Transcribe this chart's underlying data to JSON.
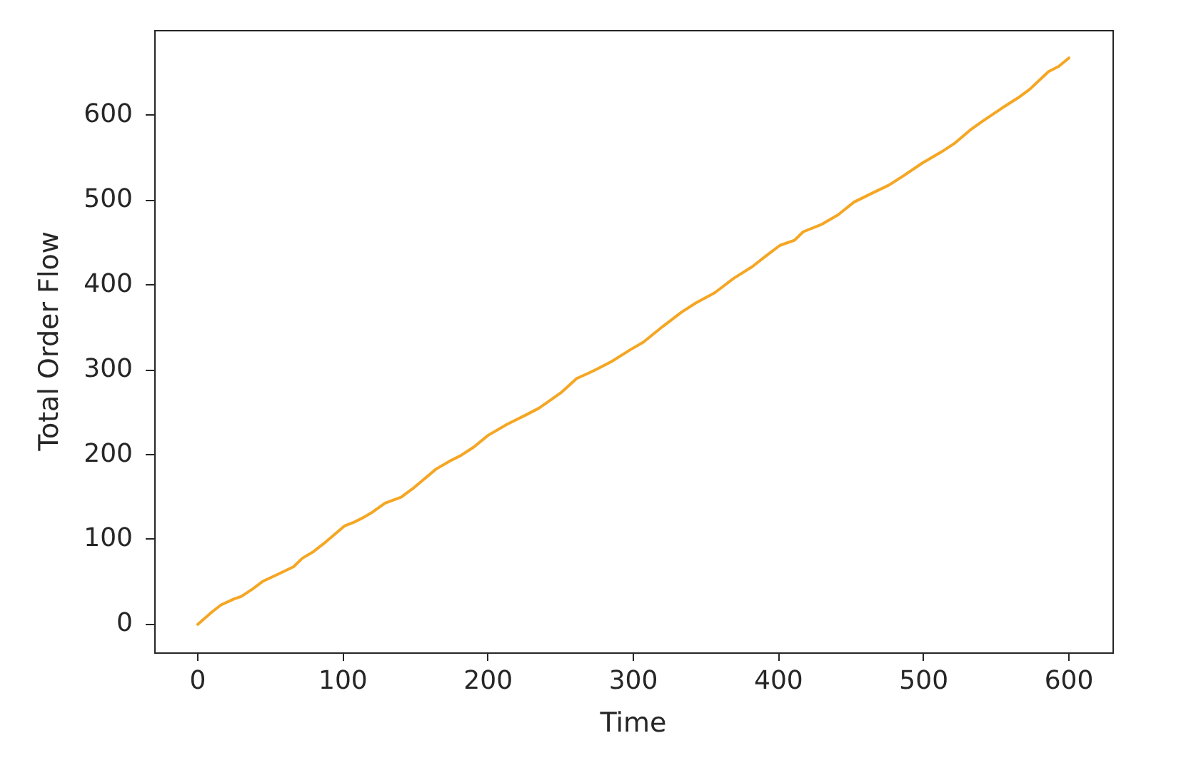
{
  "chart_data": {
    "type": "line",
    "xlabel": "Time",
    "ylabel": "Total Order Flow",
    "x": [
      0,
      10,
      16,
      25,
      30,
      38,
      45,
      55,
      66,
      72,
      79,
      88,
      101,
      107,
      114,
      120,
      129,
      140,
      148,
      164,
      174,
      181,
      190,
      200,
      213,
      226,
      235,
      250,
      261,
      270,
      276,
      285,
      298,
      307,
      320,
      333,
      343,
      356,
      369,
      382,
      391,
      401,
      411,
      417,
      430,
      441,
      452,
      465,
      476,
      486,
      499,
      512,
      521,
      532,
      541,
      554,
      565,
      573,
      586,
      593,
      600
    ],
    "values": [
      0,
      15,
      23,
      30,
      33,
      42,
      51,
      59,
      68,
      78,
      85,
      97,
      116,
      120,
      126,
      132,
      143,
      150,
      160,
      183,
      193,
      199,
      209,
      223,
      236,
      247,
      255,
      273,
      290,
      297,
      302,
      310,
      324,
      333,
      351,
      368,
      379,
      391,
      408,
      422,
      434,
      447,
      453,
      463,
      472,
      483,
      498,
      509,
      518,
      529,
      544,
      557,
      567,
      583,
      594,
      609,
      621,
      631,
      652,
      658,
      668
    ],
    "color": "#f5a623",
    "xlim": [
      -30,
      630
    ],
    "xticks": [
      0,
      100,
      200,
      300,
      400,
      500,
      600
    ],
    "ylim": [
      -33,
      701
    ],
    "yticks": [
      0,
      100,
      200,
      300,
      400,
      500,
      600
    ]
  }
}
